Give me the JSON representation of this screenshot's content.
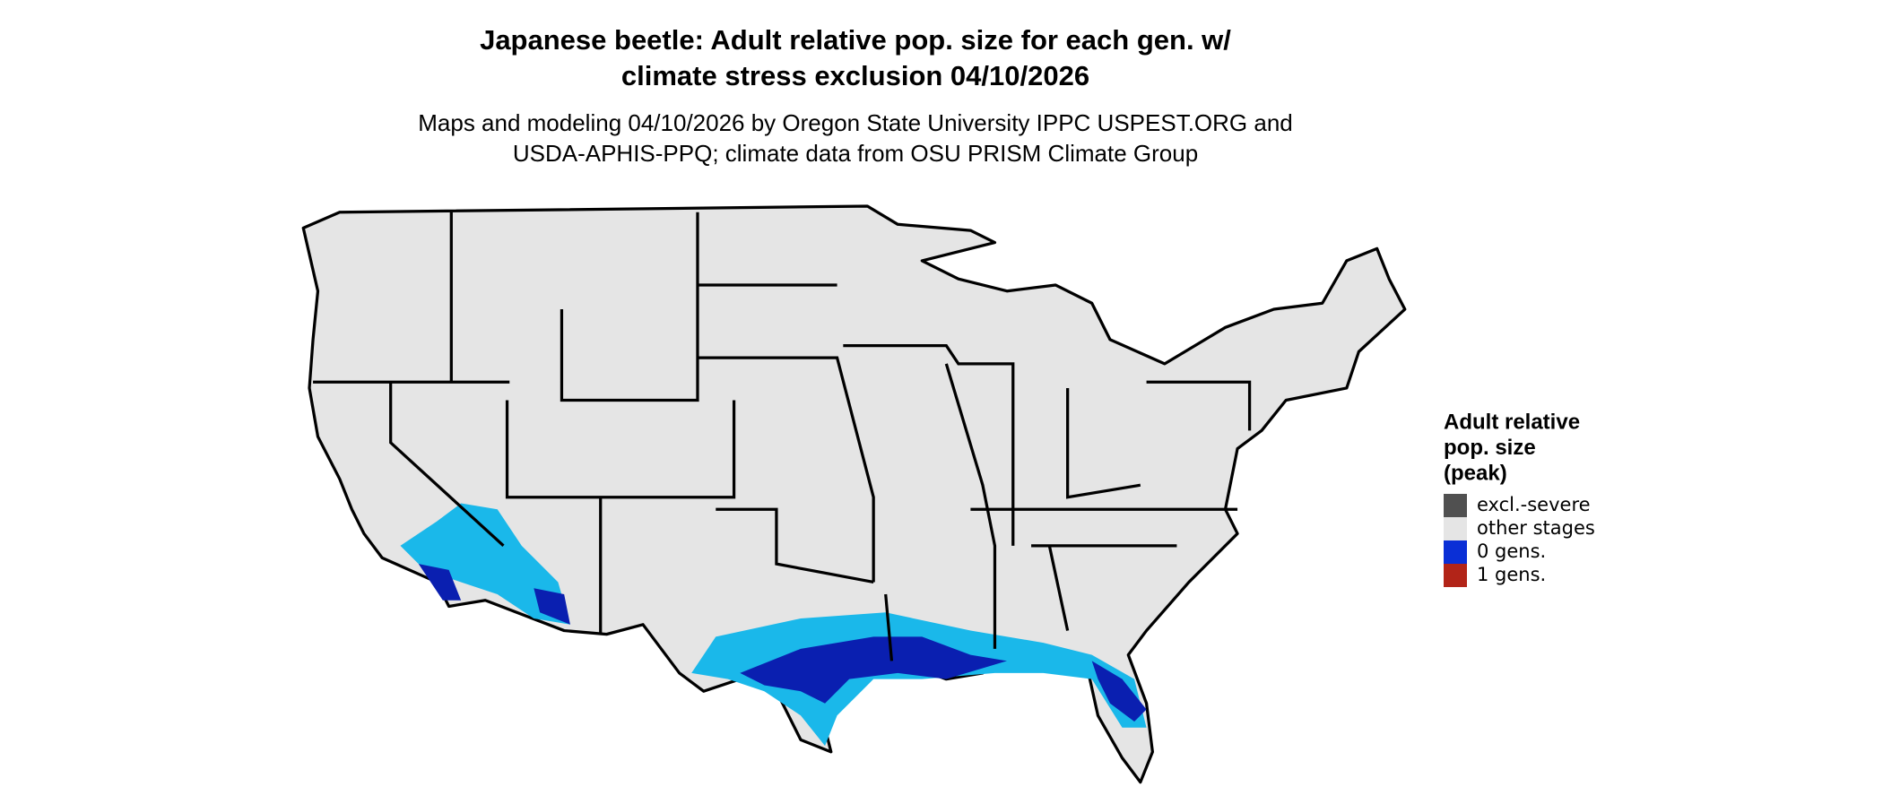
{
  "header": {
    "title_lines": [
      "Japanese beetle: Adult relative pop. size for each gen. w/",
      "climate stress exclusion 04/10/2026"
    ],
    "subtitle_lines": [
      "Maps and modeling 04/10/2026 by Oregon State University IPPC USPEST.ORG and",
      "USDA-APHIS-PPQ; climate data from OSU PRISM Climate Group"
    ]
  },
  "legend": {
    "title_lines": [
      "Adult relative",
      "pop. size",
      "(peak)"
    ],
    "items": [
      {
        "label": "excl.-severe",
        "color": "#505050"
      },
      {
        "label": "other stages",
        "color": "#e5e5e5"
      },
      {
        "label": "0 gens.",
        "color": "#0a2fd6"
      },
      {
        "label": "1 gens.",
        "color": "#b22418"
      }
    ]
  }
}
